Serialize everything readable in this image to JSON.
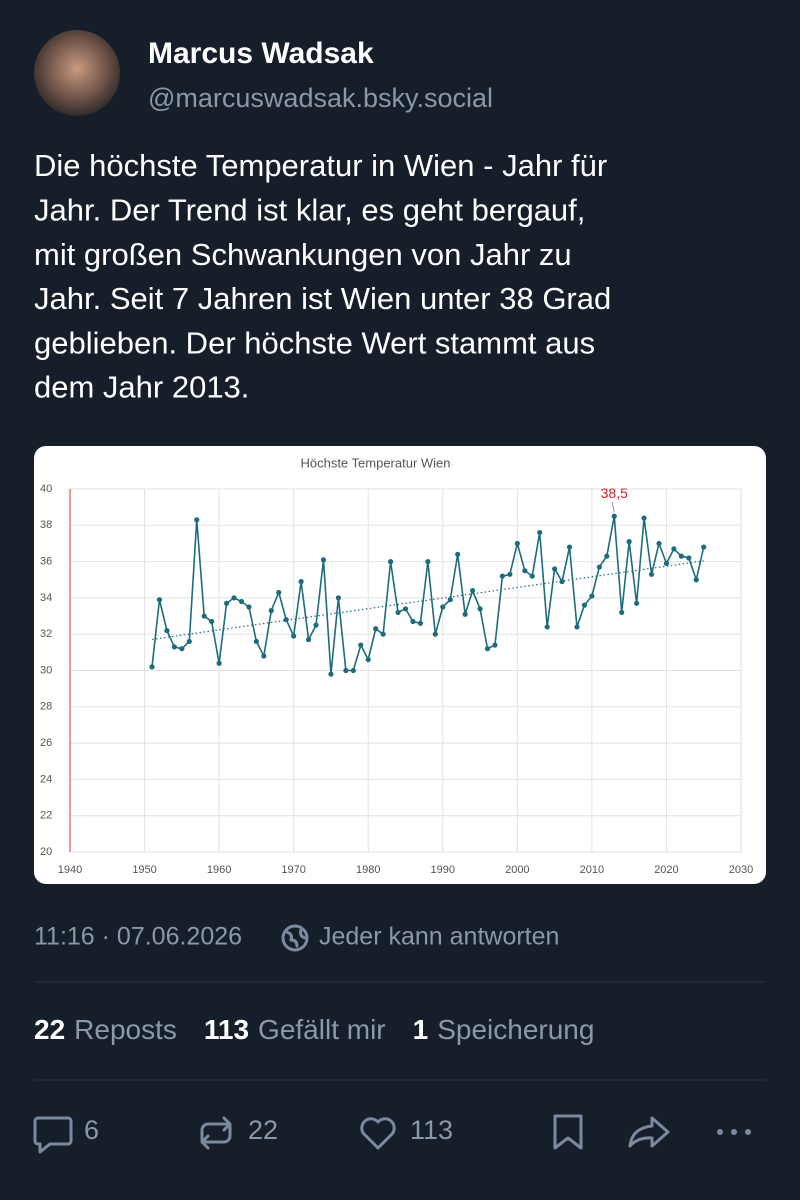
{
  "author": {
    "name": "Marcus Wadsak",
    "handle": "@marcuswadsak.bsky.social"
  },
  "post_lines": [
    "Die höchste Temperatur in Wien - Jahr für",
    "Jahr. Der Trend ist klar, es geht bergauf,",
    "mit großen Schwankungen von Jahr zu",
    "Jahr. Seit 7 Jahren ist Wien unter 38 Grad",
    "geblieben. Der höchste Wert stammt aus",
    "dem Jahr 2013."
  ],
  "chart_data": {
    "type": "line",
    "title": "Höchste Temperatur Wien",
    "x": [
      1951,
      1952,
      1953,
      1954,
      1955,
      1956,
      1957,
      1958,
      1959,
      1960,
      1961,
      1962,
      1963,
      1964,
      1965,
      1966,
      1967,
      1968,
      1969,
      1970,
      1971,
      1972,
      1973,
      1974,
      1975,
      1976,
      1977,
      1978,
      1979,
      1980,
      1981,
      1982,
      1983,
      1984,
      1985,
      1986,
      1987,
      1988,
      1989,
      1990,
      1991,
      1992,
      1993,
      1994,
      1995,
      1996,
      1997,
      1998,
      1999,
      2000,
      2001,
      2002,
      2003,
      2004,
      2005,
      2006,
      2007,
      2008,
      2009,
      2010,
      2011,
      2012,
      2013,
      2014,
      2015,
      2016,
      2017,
      2018,
      2019,
      2020,
      2021,
      2022,
      2023,
      2024,
      2025
    ],
    "values": [
      30.2,
      33.9,
      32.2,
      31.3,
      31.2,
      31.6,
      38.3,
      33.0,
      32.7,
      30.4,
      33.7,
      34.0,
      33.8,
      33.5,
      31.6,
      30.8,
      33.3,
      34.3,
      32.8,
      31.9,
      34.9,
      31.7,
      32.5,
      36.1,
      29.8,
      34.0,
      30.0,
      30.0,
      31.4,
      30.6,
      32.3,
      32.0,
      36.0,
      33.2,
      33.4,
      32.7,
      32.6,
      36.0,
      32.0,
      33.5,
      33.9,
      36.4,
      33.1,
      34.4,
      33.4,
      31.2,
      31.4,
      35.2,
      35.3,
      37.0,
      35.5,
      35.2,
      37.6,
      32.4,
      35.6,
      34.9,
      36.8,
      32.4,
      33.6,
      34.1,
      35.7,
      36.3,
      38.5,
      33.2,
      37.1,
      33.7,
      38.4,
      35.3,
      37.0,
      35.9,
      36.7,
      36.3,
      36.2,
      35.0,
      36.8
    ],
    "color": "#1f6b7e",
    "xlim": [
      1940,
      2030
    ],
    "xticks": [
      1940,
      1950,
      1960,
      1970,
      1980,
      1990,
      2000,
      2010,
      2020,
      2030
    ],
    "ylim": [
      20,
      40
    ],
    "yticks": [
      20,
      22,
      24,
      26,
      28,
      30,
      32,
      34,
      36,
      38,
      40
    ],
    "grid": true,
    "trendline": true,
    "annotations": [
      {
        "label": "38,5",
        "x": 2013,
        "value": 38.5,
        "color": "#d0202a"
      }
    ]
  },
  "meta": {
    "time": "11:16 · 07.06.2026",
    "reply_setting": "Jeder kann antworten"
  },
  "stats": [
    {
      "count": "22",
      "label": "Reposts"
    },
    {
      "count": "113",
      "label": "Gefällt mir"
    },
    {
      "count": "1",
      "label": "Speicherung"
    }
  ],
  "actions": {
    "replies": "6",
    "reposts": "22",
    "likes": "113"
  }
}
